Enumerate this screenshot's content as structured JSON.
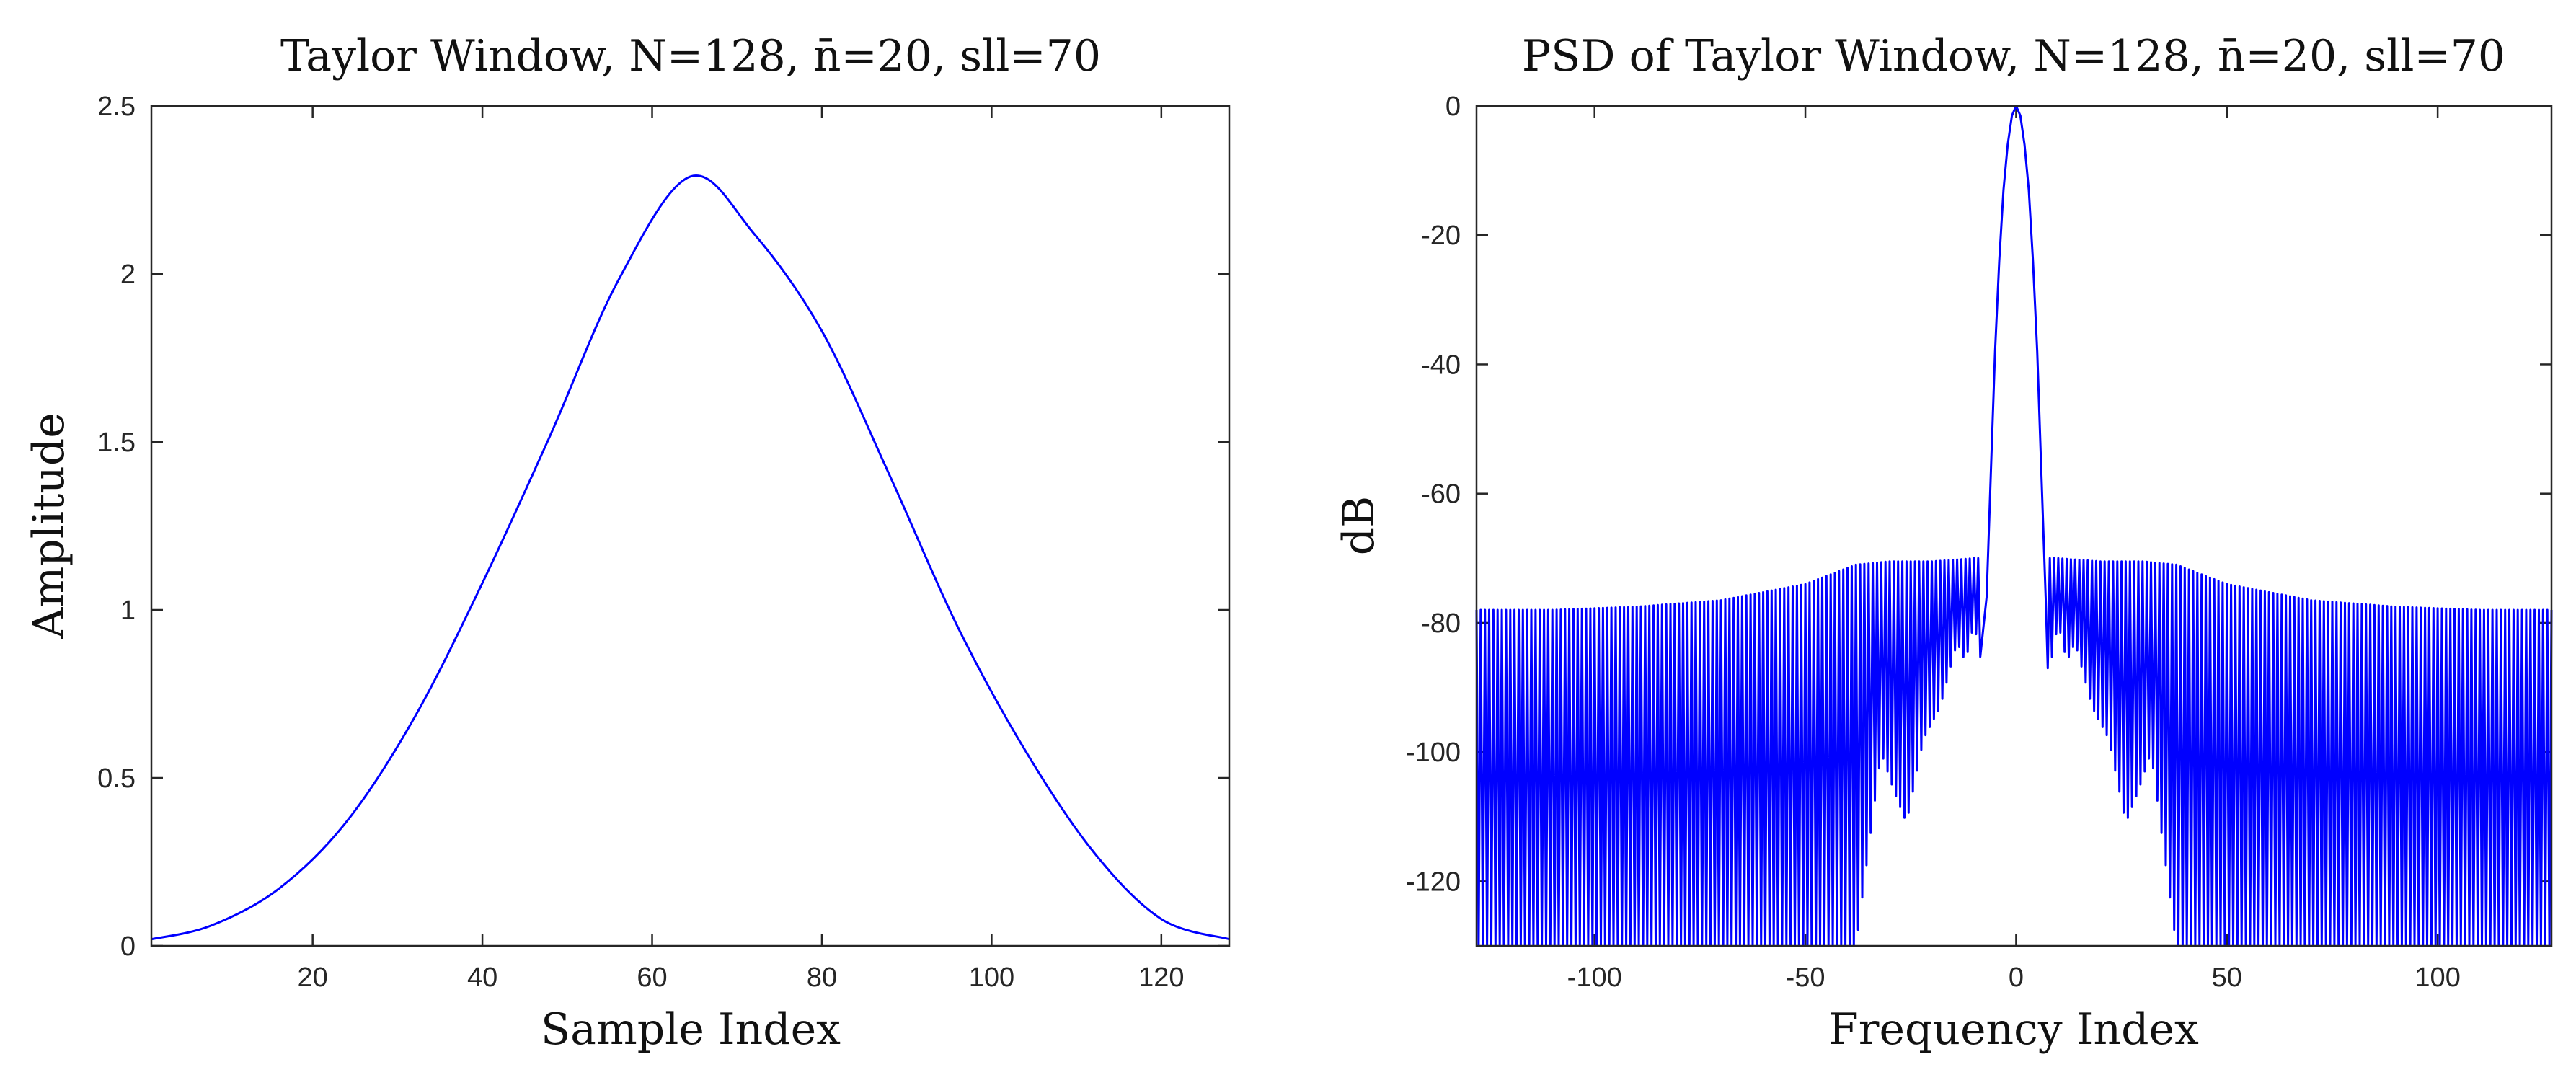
{
  "chart_data": [
    {
      "type": "line",
      "title": "Taylor Window, N=128, n̄=20, sll=70",
      "xlabel": "Sample Index",
      "ylabel": "Amplitude",
      "xlim": [
        1,
        128
      ],
      "ylim": [
        0,
        2.5
      ],
      "xticks": [
        20,
        40,
        60,
        80,
        100,
        120
      ],
      "yticks": [
        0,
        0.5,
        1,
        1.5,
        2,
        2.5
      ],
      "xtick_labels": [
        "20",
        "40",
        "60",
        "80",
        "100",
        "120"
      ],
      "ytick_labels": [
        "0",
        "0.5",
        "1",
        "1.5",
        "2",
        "2.5"
      ],
      "series": [
        {
          "name": "Taylor window",
          "color": "#0000ff",
          "x": [
            1,
            8,
            16,
            24,
            32,
            40,
            48,
            56,
            64.5,
            72,
            80,
            88,
            96,
            104,
            112,
            120,
            128
          ],
          "values": [
            0.02,
            0.06,
            0.17,
            0.37,
            0.68,
            1.08,
            1.52,
            1.98,
            2.29,
            2.12,
            1.83,
            1.4,
            0.95,
            0.58,
            0.28,
            0.08,
            0.02
          ]
        }
      ]
    },
    {
      "type": "line",
      "title": "PSD of Taylor Window, N=128, n̄=20, sll=70",
      "xlabel": "Frequency Index",
      "ylabel": "dB",
      "xlim": [
        -128,
        127
      ],
      "ylim": [
        -130,
        0
      ],
      "xticks": [
        -100,
        -50,
        0,
        50,
        100
      ],
      "yticks": [
        -120,
        -100,
        -80,
        -60,
        -40,
        -20,
        0
      ],
      "xtick_labels": [
        "-100",
        "-50",
        "0",
        "50",
        "100"
      ],
      "ytick_labels": [
        "-120",
        "-100",
        "-80",
        "-60",
        "-40",
        "-20",
        "0"
      ],
      "series": [
        {
          "name": "PSD",
          "color": "#0000ff",
          "mainlobe": {
            "x": [
              -7,
              -6,
              -5,
              -4,
              -3,
              -2,
              -1,
              0,
              1,
              2,
              3,
              4,
              5,
              6,
              7
            ],
            "values": [
              -76,
              -57,
              -38,
              -24,
              -13,
              -6,
              -1.5,
              0,
              -1.5,
              -6,
              -13,
              -24,
              -38,
              -57,
              -76
            ]
          },
          "sidelobe_peaks": {
            "x": [
              -128,
              -110,
              -90,
              -70,
              -50,
              -38,
              -30,
              -20,
              -10,
              10,
              20,
              30,
              38,
              50,
              70,
              90,
              110,
              127
            ],
            "values": [
              -78,
              -78,
              -77.5,
              -76.5,
              -74,
              -71,
              -70.5,
              -70.5,
              -70,
              -70,
              -70.5,
              -70.5,
              -71,
              -74,
              -76.5,
              -77.5,
              -78,
              -78
            ]
          },
          "sidelobe_nulls": {
            "x": [
              -38,
              -32,
              -29,
              -26,
              -22,
              -18,
              -14,
              -12,
              -10,
              -8,
              8,
              10,
              12,
              14,
              18,
              22,
              26,
              29,
              32,
              38
            ],
            "values": [
              -130,
              -100,
              -106,
              -111,
              -98,
              -93,
              -83,
              -86,
              -80,
              -87,
              -87,
              -80,
              -86,
              -83,
              -93,
              -98,
              -111,
              -106,
              -100,
              -130
            ]
          }
        }
      ]
    }
  ]
}
